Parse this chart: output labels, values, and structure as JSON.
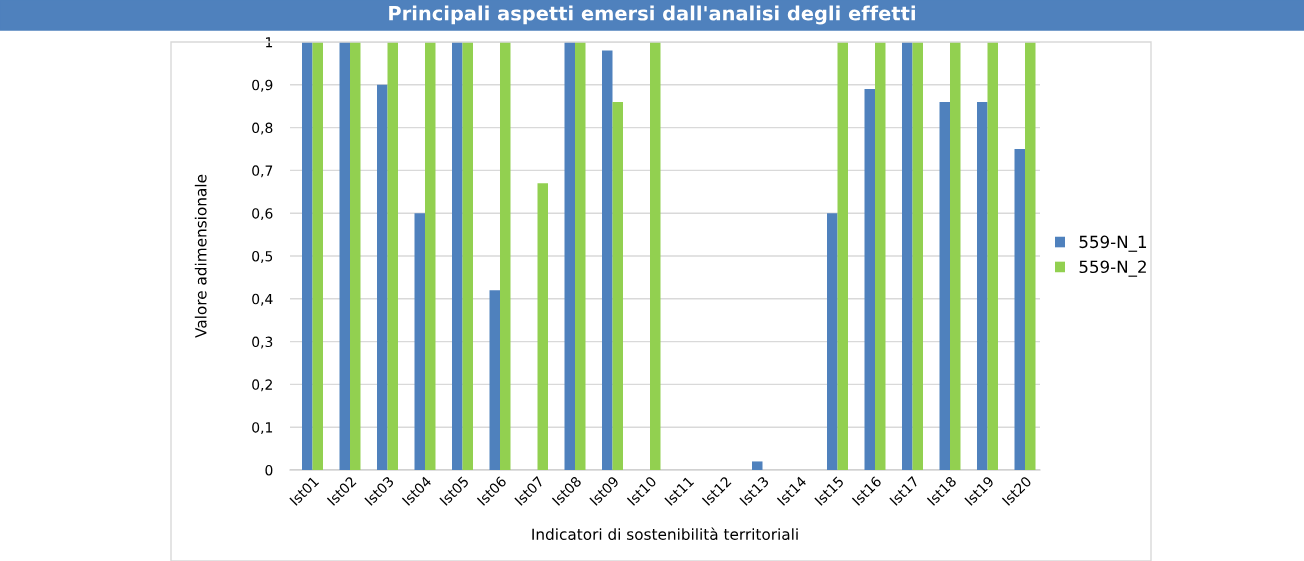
{
  "chart_data": {
    "type": "bar",
    "title": "Principali aspetti emersi dall'analisi degli effetti",
    "xlabel": "Indicatori di sostenibilità territoriali",
    "ylabel": "Valore adimensionale",
    "categories": [
      "Ist01",
      "Ist02",
      "Ist03",
      "Ist04",
      "Ist05",
      "Ist06",
      "Ist07",
      "Ist08",
      "Ist09",
      "Ist10",
      "Ist11",
      "Ist12",
      "Ist13",
      "Ist14",
      "Ist15",
      "Ist16",
      "Ist17",
      "Ist18",
      "Ist19",
      "Ist20"
    ],
    "series": [
      {
        "name": "559-N_1",
        "color": "#4f81bd",
        "values": [
          1,
          1,
          0.9,
          0.6,
          1,
          0.42,
          0,
          1,
          0.98,
          0,
          0,
          0,
          0.02,
          0,
          0.6,
          0.89,
          1,
          0.86,
          0.86,
          0.75
        ]
      },
      {
        "name": "559-N_2",
        "color": "#92d050",
        "values": [
          1,
          1,
          1,
          1,
          1,
          1,
          0.67,
          1,
          0.86,
          1,
          0,
          0,
          0,
          0,
          1,
          1,
          1,
          1,
          1,
          1
        ]
      }
    ],
    "ylim": [
      0,
      1
    ],
    "yticks": [
      {
        "value": 0,
        "label": "0"
      },
      {
        "value": 0.1,
        "label": "0,1"
      },
      {
        "value": 0.2,
        "label": "0,2"
      },
      {
        "value": 0.3,
        "label": "0,3"
      },
      {
        "value": 0.4,
        "label": "0,4"
      },
      {
        "value": 0.5,
        "label": "0,5"
      },
      {
        "value": 0.6,
        "label": "0,6"
      },
      {
        "value": 0.7,
        "label": "0,7"
      },
      {
        "value": 0.8,
        "label": "0,8"
      },
      {
        "value": 0.9,
        "label": "0,9"
      },
      {
        "value": 1,
        "label": "1"
      }
    ],
    "grid": "y",
    "legend": "right"
  }
}
